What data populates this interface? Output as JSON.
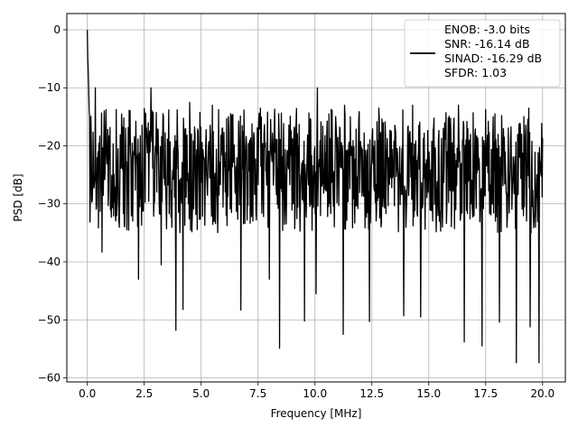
{
  "chart_data": {
    "type": "line",
    "title": "",
    "xlabel": "Frequency [MHz]",
    "ylabel": "PSD [dB]",
    "xlim": [
      -0.9,
      21.0
    ],
    "ylim": [
      -60.7,
      2.8
    ],
    "xticks": [
      0.0,
      2.5,
      5.0,
      7.5,
      10.0,
      12.5,
      15.0,
      17.5,
      20.0
    ],
    "xtick_labels": [
      "0.0",
      "2.5",
      "5.0",
      "7.5",
      "10.0",
      "12.5",
      "15.0",
      "17.5",
      "20.0"
    ],
    "yticks": [
      0,
      -10,
      -20,
      -30,
      -40,
      -50,
      -60
    ],
    "ytick_labels": [
      "0",
      "−10",
      "−20",
      "−30",
      "−40",
      "−50",
      "−60"
    ],
    "grid": true,
    "legend_position": "top-right",
    "legend_lines": [
      "ENOB: -3.0 bits",
      "SNR: -16.14 dB",
      "SINAD: -16.29 dB",
      "SFDR: 1.03"
    ],
    "series": [
      {
        "color": "#000000",
        "x_start": 0.0,
        "x_end": 20.0,
        "num_points": 1024,
        "initial_peak_db": 0.0,
        "noise_floor_mean_db": -24.0,
        "noise_upper_envelope_db": -13.5,
        "noise_lower_envelope_db": -33.0,
        "peaks": [
          [
            0.0,
            -1.0
          ],
          [
            0.02,
            -5.0
          ],
          [
            0.05,
            -10.0
          ],
          [
            0.1,
            -15.0
          ],
          [
            0.35,
            -10.0
          ],
          [
            0.75,
            -14.0
          ],
          [
            1.5,
            -14.5
          ],
          [
            2.8,
            -10.0
          ],
          [
            4.5,
            -12.5
          ],
          [
            5.5,
            -13.0
          ],
          [
            7.6,
            -13.5
          ],
          [
            10.1,
            -10.0
          ],
          [
            11.3,
            -13.0
          ],
          [
            12.8,
            -13.5
          ],
          [
            14.3,
            -13.0
          ],
          [
            16.3,
            -13.0
          ],
          [
            17.9,
            -14.5
          ],
          [
            19.4,
            -13.5
          ]
        ],
        "troughs": [
          [
            0.2,
            -29.7
          ],
          [
            0.65,
            -38.3
          ],
          [
            2.25,
            -43.0
          ],
          [
            3.25,
            -40.5
          ],
          [
            3.9,
            -51.8
          ],
          [
            4.2,
            -48.2
          ],
          [
            6.75,
            -48.3
          ],
          [
            8.0,
            -43.0
          ],
          [
            8.45,
            -54.9
          ],
          [
            9.55,
            -50.2
          ],
          [
            10.05,
            -45.5
          ],
          [
            11.25,
            -52.5
          ],
          [
            12.4,
            -50.3
          ],
          [
            13.9,
            -49.3
          ],
          [
            14.65,
            -49.5
          ],
          [
            16.55,
            -53.8
          ],
          [
            17.35,
            -54.5
          ],
          [
            18.1,
            -50.4
          ],
          [
            18.85,
            -57.4
          ],
          [
            19.45,
            -51.2
          ],
          [
            19.85,
            -57.4
          ]
        ]
      }
    ]
  },
  "colors": {
    "line": "#000000",
    "grid": "#b0b0b0",
    "axes": "#000000",
    "background": "#ffffff"
  }
}
